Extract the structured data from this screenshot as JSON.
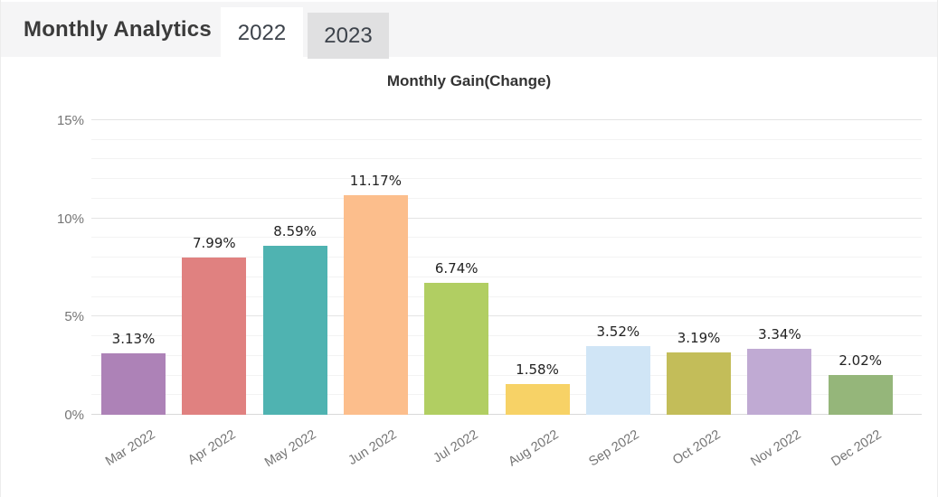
{
  "header": {
    "title": "Monthly Analytics",
    "tabs": [
      {
        "label": "2022",
        "active": true
      },
      {
        "label": "2023",
        "active": false
      }
    ]
  },
  "chart_data": {
    "type": "bar",
    "title": "Monthly Gain(Change)",
    "categories": [
      "Mar 2022",
      "Apr 2022",
      "May 2022",
      "Jun 2022",
      "Jul 2022",
      "Aug 2022",
      "Sep 2022",
      "Oct 2022",
      "Nov 2022",
      "Dec 2022"
    ],
    "values": [
      3.13,
      7.99,
      8.59,
      11.17,
      6.74,
      1.58,
      3.52,
      3.19,
      3.34,
      2.02
    ],
    "value_labels": [
      "3.13%",
      "7.99%",
      "8.59%",
      "11.17%",
      "6.74%",
      "1.58%",
      "3.52%",
      "3.19%",
      "3.34%",
      "2.02%"
    ],
    "bar_colors": [
      "#ad82b7",
      "#e08180",
      "#4fb3b1",
      "#fcbe8c",
      "#b1ce62",
      "#f7d266",
      "#d0e5f6",
      "#c3bd59",
      "#c0aad3",
      "#95b67a"
    ],
    "xlabel": "",
    "ylabel": "",
    "ylim": [
      0,
      15
    ],
    "yticks": [
      {
        "value": 0,
        "label": "0%"
      },
      {
        "value": 5,
        "label": "5%"
      },
      {
        "value": 10,
        "label": "10%"
      },
      {
        "value": 15,
        "label": "15%"
      }
    ],
    "minor_grid_step": 1,
    "major_grid_step": 5,
    "grid": true,
    "legend": "none"
  },
  "colors": {
    "header_bg": "#f5f5f6",
    "tab_active_bg": "#ffffff",
    "tab_inactive_bg": "#e0e0e1",
    "axis_text": "#757575",
    "value_text": "#222222",
    "grid_minor": "#f3f3f3",
    "grid_major": "#e4e4e4"
  }
}
